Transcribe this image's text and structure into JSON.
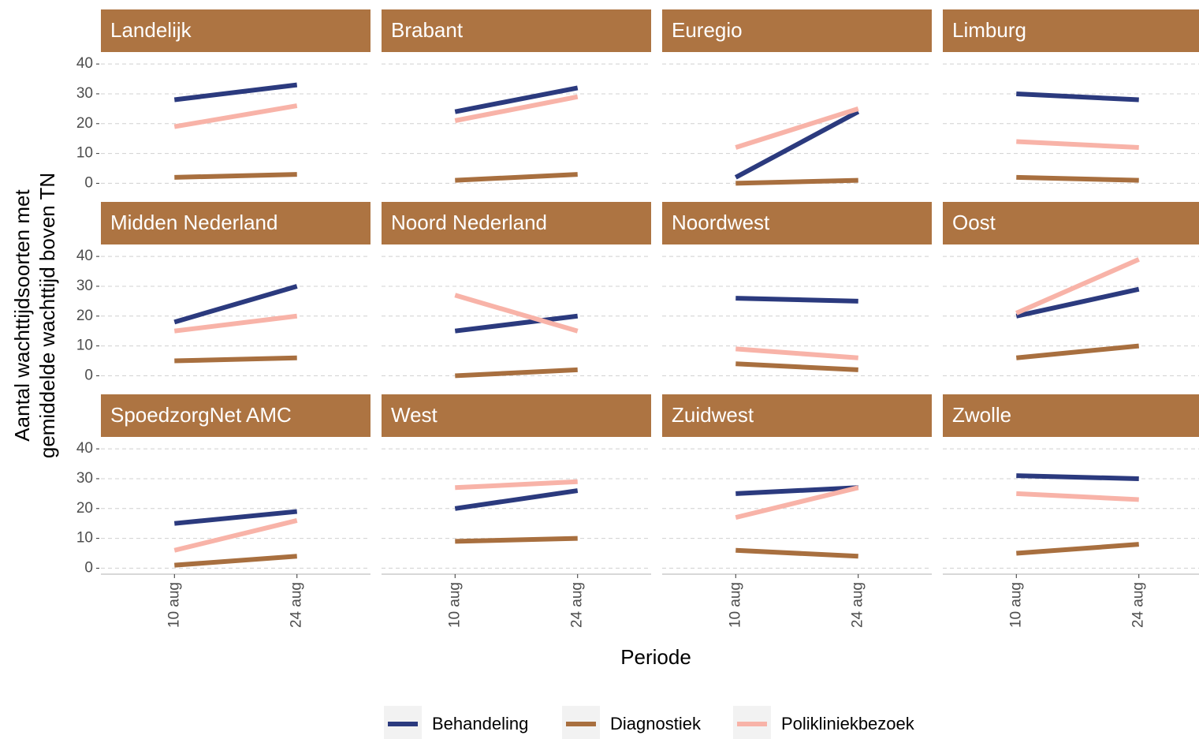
{
  "chart_data": {
    "type": "line",
    "x_label": "Periode",
    "y_label": [
      "Aantal wachttijdsoorten met",
      "gemiddelde wachttijd boven TN"
    ],
    "categories": [
      "10 aug",
      "24 aug"
    ],
    "ylim": [
      -2,
      44
    ],
    "yticks": [
      0,
      10,
      20,
      30,
      40
    ],
    "grid": true,
    "series": [
      {
        "name": "Behandeling",
        "color": "#2b3a7e"
      },
      {
        "name": "Diagnostiek",
        "color": "#a86f3f"
      },
      {
        "name": "Polikliniekbezoek",
        "color": "#f8b3a8"
      }
    ],
    "facets": [
      {
        "title": "Landelijk",
        "values": [
          [
            28,
            33
          ],
          [
            2,
            3
          ],
          [
            19,
            26
          ]
        ]
      },
      {
        "title": "Brabant",
        "values": [
          [
            24,
            32
          ],
          [
            1,
            3
          ],
          [
            21,
            29
          ]
        ]
      },
      {
        "title": "Euregio",
        "values": [
          [
            2,
            24
          ],
          [
            0,
            1
          ],
          [
            12,
            25
          ]
        ]
      },
      {
        "title": "Limburg",
        "values": [
          [
            30,
            28
          ],
          [
            2,
            1
          ],
          [
            14,
            12
          ]
        ]
      },
      {
        "title": "Midden Nederland",
        "values": [
          [
            18,
            30
          ],
          [
            5,
            6
          ],
          [
            15,
            20
          ]
        ]
      },
      {
        "title": "Noord Nederland",
        "values": [
          [
            15,
            20
          ],
          [
            0,
            2
          ],
          [
            27,
            15
          ]
        ]
      },
      {
        "title": "Noordwest",
        "values": [
          [
            26,
            25
          ],
          [
            4,
            2
          ],
          [
            9,
            6
          ]
        ]
      },
      {
        "title": "Oost",
        "values": [
          [
            20,
            29
          ],
          [
            6,
            10
          ],
          [
            21,
            39
          ]
        ]
      },
      {
        "title": "SpoedzorgNet AMC",
        "values": [
          [
            15,
            19
          ],
          [
            1,
            4
          ],
          [
            6,
            16
          ]
        ]
      },
      {
        "title": "West",
        "values": [
          [
            20,
            26
          ],
          [
            9,
            10
          ],
          [
            27,
            29
          ]
        ]
      },
      {
        "title": "Zuidwest",
        "values": [
          [
            25,
            27
          ],
          [
            6,
            4
          ],
          [
            17,
            27
          ]
        ]
      },
      {
        "title": "Zwolle",
        "values": [
          [
            31,
            30
          ],
          [
            5,
            8
          ],
          [
            25,
            23
          ]
        ]
      }
    ]
  }
}
